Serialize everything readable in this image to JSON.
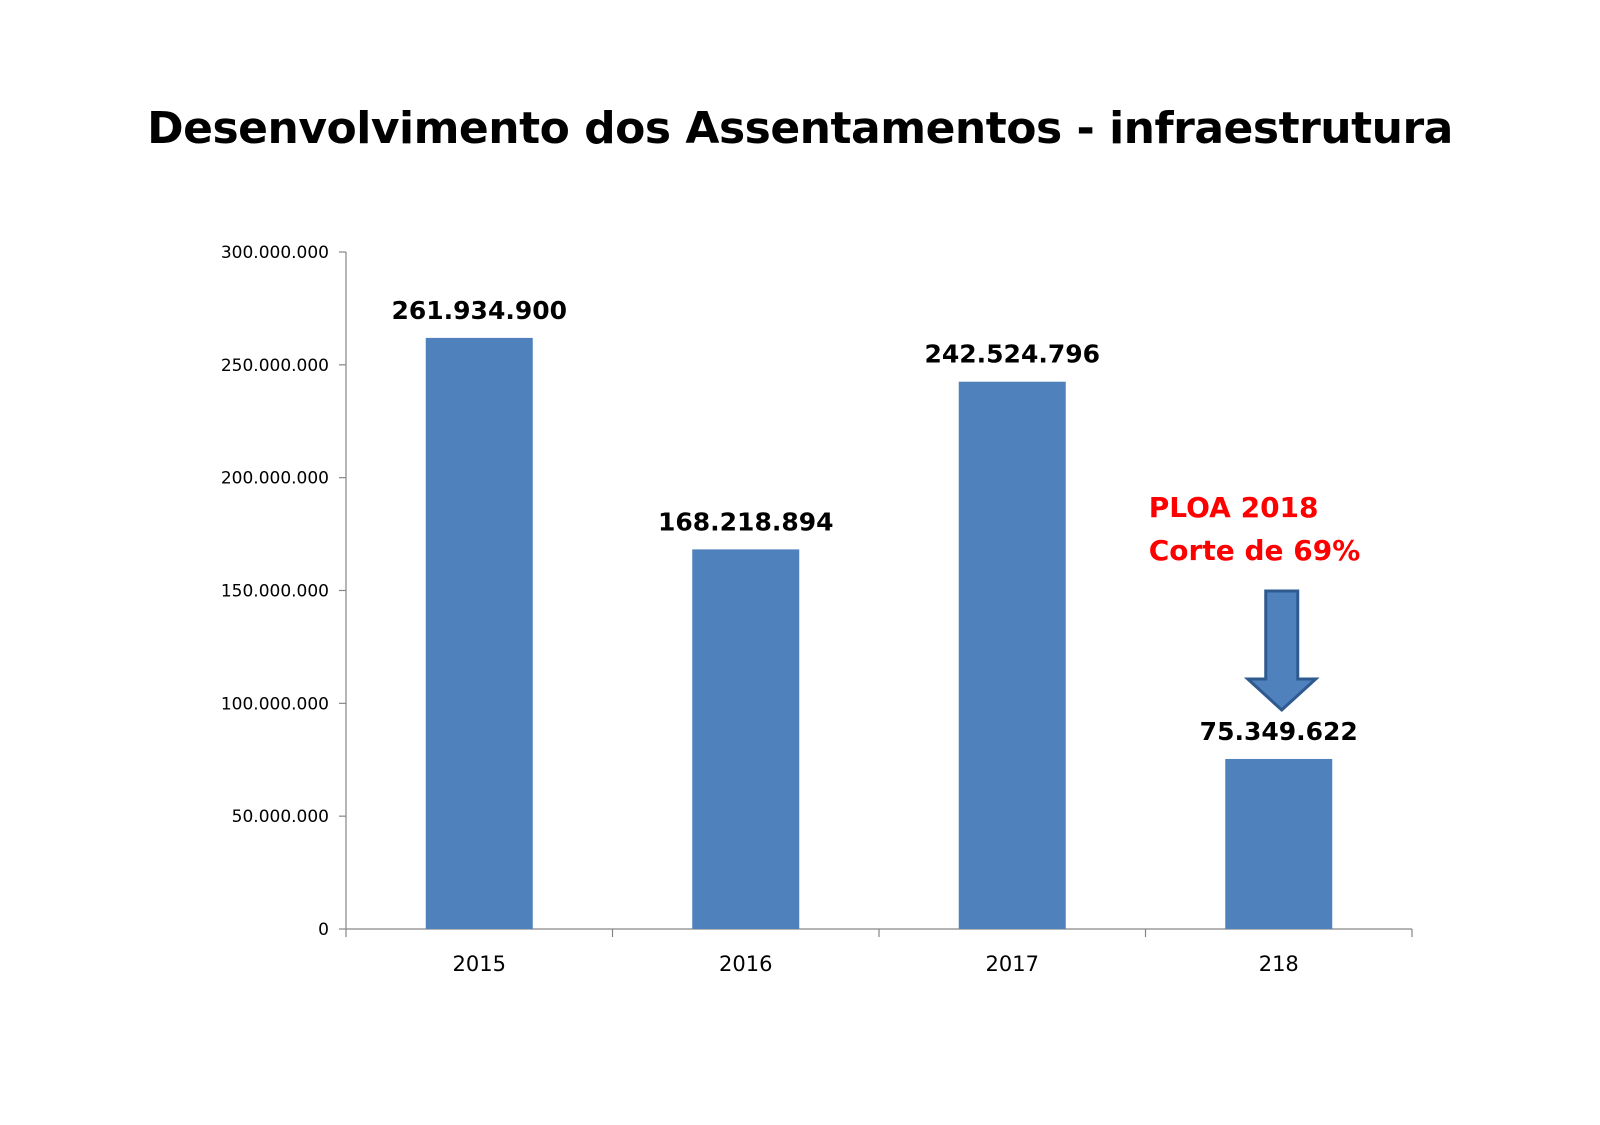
{
  "chart_data": {
    "type": "bar",
    "title": "Desenvolvimento dos Assentamentos - infraestrutura",
    "categories": [
      "2015",
      "2016",
      "2017",
      "218"
    ],
    "values": [
      261934900,
      168218894,
      242524796,
      75349622
    ],
    "data_labels": [
      "261.934.900",
      "168.218.894",
      "242.524.796",
      "75.349.622"
    ],
    "ylim": [
      0,
      300000000
    ],
    "yticks": [
      0,
      50000000,
      100000000,
      150000000,
      200000000,
      250000000,
      300000000
    ],
    "ytick_labels": [
      "0",
      "50.000.000",
      "100.000.000",
      "150.000.000",
      "200.000.000",
      "250.000.000",
      "300.000.000"
    ],
    "grid": false,
    "legend": "none",
    "bar_color": "#4F81BD",
    "annotation": {
      "lines": [
        "PLOA 2018",
        "Corte de 69%"
      ],
      "color": "#FF0000",
      "target_category": "218",
      "arrow_icon": "down-arrow-icon",
      "arrow_color": "#4F81BD"
    }
  }
}
